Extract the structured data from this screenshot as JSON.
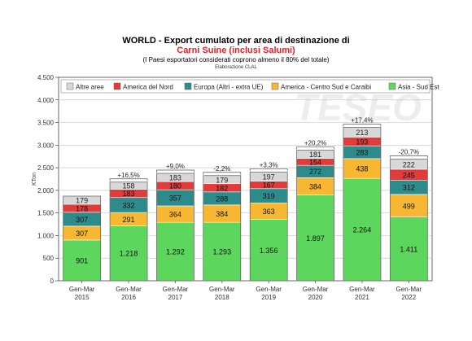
{
  "header": {
    "title_line1": "WORLD - Export cumulato per area di destinazione di",
    "title_line2": "Carni Suine (inclusi Salumi)",
    "subtitle": "(I Paesi esportatori considerati coprono almeno il 80% del totale)",
    "credit": "Elaborazione CLAL"
  },
  "watermark": "TESEO",
  "chart_data": {
    "type": "bar",
    "stacked": true,
    "ylabel": "KTon",
    "ylim": [
      0,
      4500
    ],
    "yticks": [
      0,
      500,
      1000,
      1500,
      2000,
      2500,
      3000,
      3500,
      4000,
      4500
    ],
    "ytick_labels": [
      "0",
      "500",
      "1.000",
      "1.500",
      "2.000",
      "2.500",
      "3.000",
      "3.500",
      "4.000",
      "4.500"
    ],
    "grid": true,
    "legend_position": "top",
    "categories": [
      [
        "Gen-Mar",
        "2015"
      ],
      [
        "Gen-Mar",
        "2016"
      ],
      [
        "Gen-Mar",
        "2017"
      ],
      [
        "Gen-Mar",
        "2018"
      ],
      [
        "Gen-Mar",
        "2019"
      ],
      [
        "Gen-Mar",
        "2020"
      ],
      [
        "Gen-Mar",
        "2021"
      ],
      [
        "Gen-Mar",
        "2022"
      ]
    ],
    "series": [
      {
        "name": "Asia - Sud Est",
        "color": "#5cd65c",
        "values": [
          901,
          1218,
          1292,
          1293,
          1356,
          1897,
          2264,
          1411
        ],
        "labels": [
          "901",
          "1.218",
          "1.292",
          "1.293",
          "1.356",
          "1.897",
          "2.264",
          "1.411"
        ]
      },
      {
        "name": "America - Centro Sud e Caraibi",
        "color": "#f7b733",
        "values": [
          307,
          291,
          364,
          384,
          363,
          384,
          438,
          499
        ],
        "labels": [
          "307",
          "291",
          "364",
          "384",
          "363",
          "384",
          "438",
          "499"
        ]
      },
      {
        "name": "Europa (Altri - extra UE)",
        "color": "#2e8b8b",
        "values": [
          307,
          332,
          357,
          288,
          319,
          272,
          283,
          312
        ],
        "labels": [
          "307",
          "332",
          "357",
          "288",
          "319",
          "272",
          "283",
          "312"
        ]
      },
      {
        "name": "America del Nord",
        "color": "#e03c3c",
        "values": [
          178,
          183,
          180,
          182,
          167,
          154,
          193,
          245
        ],
        "labels": [
          "178",
          "183",
          "180",
          "182",
          "167",
          "154",
          "193",
          "245"
        ]
      },
      {
        "name": "Altre aree",
        "color": "#d8d8d8",
        "values": [
          179,
          158,
          183,
          179,
          197,
          181,
          213,
          222
        ],
        "labels": [
          "179",
          "158",
          "183",
          "179",
          "197",
          "181",
          "213",
          "222"
        ]
      }
    ],
    "legend_order": [
      "Altre aree",
      "America del Nord",
      "Europa (Altri - extra UE)",
      "America - Centro Sud e Caraibi",
      "Asia - Sud Est"
    ],
    "changes": [
      "",
      "+16,5%",
      "+9,0%",
      "-2,2%",
      "+3,3%",
      "+20,2%",
      "+17,4%",
      "-20,7%"
    ]
  }
}
